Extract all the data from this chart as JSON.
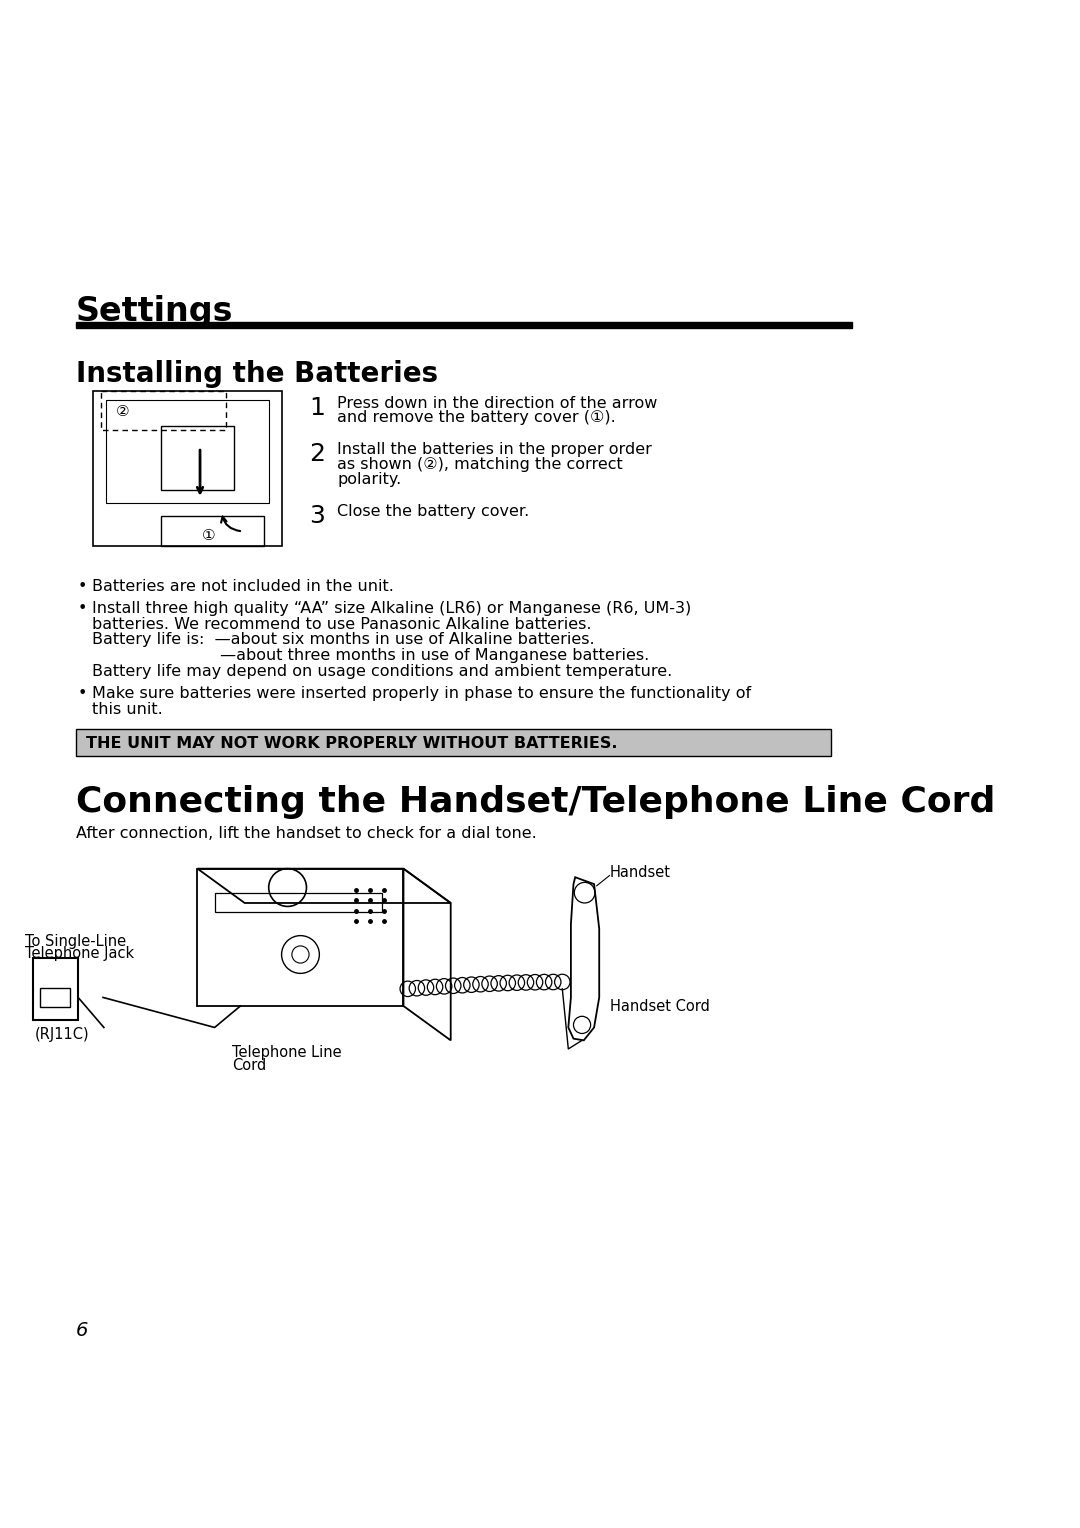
{
  "bg_color": "#ffffff",
  "page_title": "Settings",
  "section1_title": "Installing the Batteries",
  "section2_title": "Connecting the Handset/Telephone Line Cord",
  "step1_num": "1",
  "step1_text_line1": "Press down in the direction of the arrow",
  "step1_text_line2": "and remove the battery cover (①).",
  "step2_num": "2",
  "step2_text_line1": "Install the batteries in the proper order",
  "step2_text_line2": "as shown (②), matching the correct",
  "step2_text_line3": "polarity.",
  "step3_num": "3",
  "step3_text": "Close the battery cover.",
  "bullet1": "Batteries are not included in the unit.",
  "bullet2_line1": "Install three high quality “AA” size Alkaline (LR6) or Manganese (R6, UM-3)",
  "bullet2_line2": "batteries. We recommend to use Panasonic Alkaline batteries.",
  "bullet2_line3": "Battery life is:  —about six months in use of Alkaline batteries.",
  "bullet2_line4": "                         —about three months in use of Manganese batteries.",
  "bullet2_line5": "Battery life may depend on usage conditions and ambient temperature.",
  "bullet3_line1": "Make sure batteries were inserted properly in phase to ensure the functionality of",
  "bullet3_line2": "this unit.",
  "warning_text": "THE UNIT MAY NOT WORK PROPERLY WITHOUT BATTERIES.",
  "after_conn_text": "After connection, lift the handset to check for a dial tone.",
  "label_handset": "Handset",
  "label_handset_cord": "Handset Cord",
  "label_tel_line_1": "Telephone Line",
  "label_tel_line_2": "Cord",
  "label_single_line_1": "To Single-Line",
  "label_single_line_2": "Telephone Jack",
  "label_rj11c": "(RJ11C)",
  "page_num": "6",
  "title_fontsize": 24,
  "section1_fontsize": 20,
  "section2_fontsize": 26,
  "step_num_fontsize": 18,
  "body_fontsize": 11.5,
  "warning_fontsize": 11.5,
  "label_fontsize": 10.5
}
